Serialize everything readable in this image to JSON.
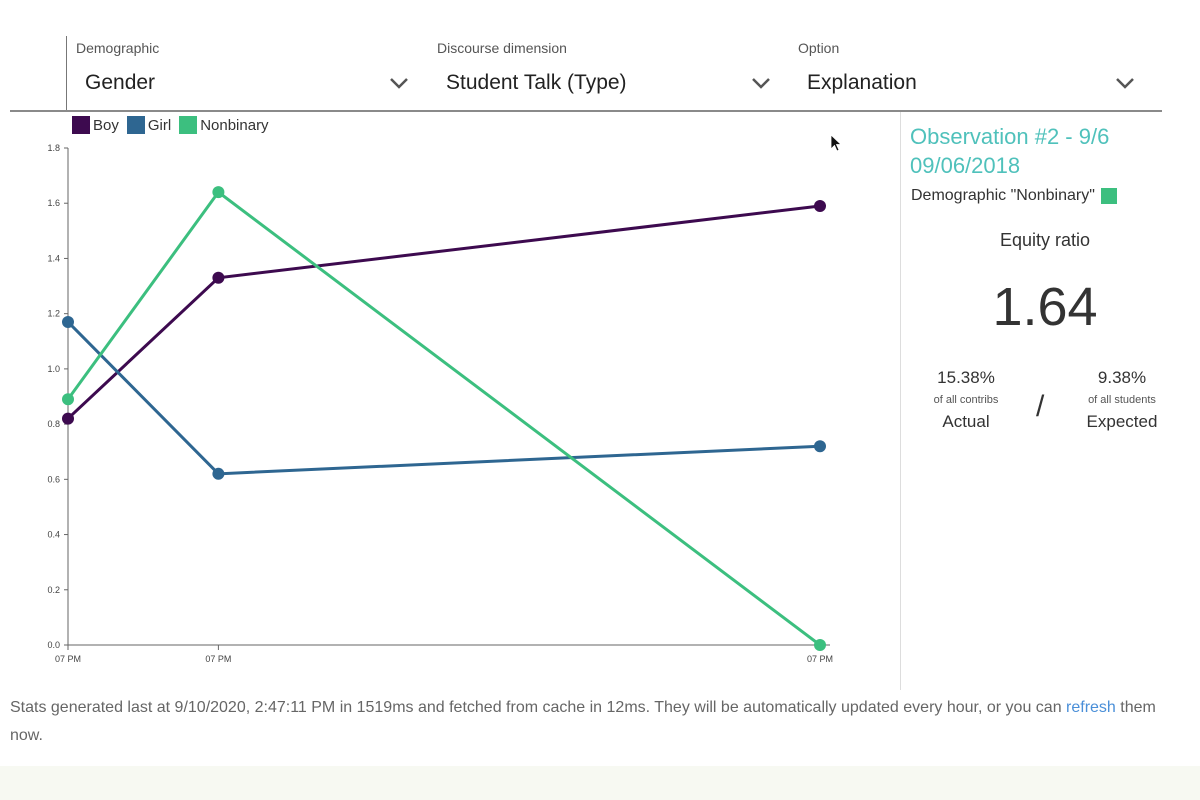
{
  "filters": [
    {
      "label": "Demographic",
      "value": "Gender"
    },
    {
      "label": "Discourse dimension",
      "value": "Student Talk (Type)"
    },
    {
      "label": "Option",
      "value": "Explanation"
    }
  ],
  "legend": [
    {
      "name": "Boy",
      "color": "#3d0a4f"
    },
    {
      "name": "Girl",
      "color": "#2e6691"
    },
    {
      "name": "Nonbinary",
      "color": "#3cbf7f"
    }
  ],
  "side_panel": {
    "title_line1": "Observation #2 - 9/6",
    "title_line2": "09/06/2018",
    "demographic_text": "Demographic \"Nonbinary\"",
    "demographic_color": "#3cbf7f",
    "equity_label": "Equity ratio",
    "equity_value": "1.64",
    "actual": {
      "pct": "15.38%",
      "sub": "of all contribs",
      "label": "Actual"
    },
    "slash": "/",
    "expected": {
      "pct": "9.38%",
      "sub": "of all students",
      "label": "Expected"
    }
  },
  "footer": {
    "text_before": "Stats generated last at 9/10/2020, 2:47:11 PM in 1519ms and fetched from cache in 12ms. They will be automatically updated every hour, or you can ",
    "link_text": "refresh",
    "text_after": " them now."
  },
  "chart_data": {
    "type": "line",
    "categories": [
      "07 PM",
      "07 PM",
      "07 PM"
    ],
    "x": [
      0,
      0.2,
      1.0
    ],
    "ylim": [
      0,
      1.8
    ],
    "yticks": [
      "0.0",
      "0.2",
      "0.4",
      "0.6",
      "0.8",
      "1.0",
      "1.2",
      "1.4",
      "1.6",
      "1.8"
    ],
    "grid": false,
    "legend_position": "top-left",
    "series": [
      {
        "name": "Boy",
        "color": "#3d0a4f",
        "values": [
          0.82,
          1.33,
          1.59
        ]
      },
      {
        "name": "Girl",
        "color": "#2e6691",
        "values": [
          1.17,
          0.62,
          0.72
        ]
      },
      {
        "name": "Nonbinary",
        "color": "#3cbf7f",
        "values": [
          0.89,
          1.64,
          0.0
        ]
      }
    ]
  }
}
